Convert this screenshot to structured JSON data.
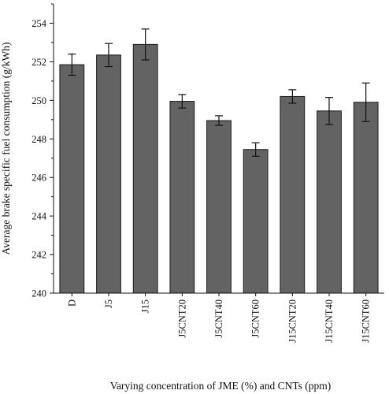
{
  "chart_data": {
    "type": "bar",
    "title": "",
    "xlabel": "Varying concentration of JME (%) and CNTs (ppm)",
    "ylabel": "Average brake specific fuel consumption (g/kWh)",
    "categories": [
      "D",
      "J5",
      "J15",
      "J5CNT20",
      "J5CNT40",
      "J5CNT60",
      "J15CNT20",
      "J15CNT40",
      "J15CNT60"
    ],
    "values": [
      251.85,
      252.35,
      252.9,
      249.95,
      248.95,
      247.45,
      250.2,
      249.45,
      249.9
    ],
    "errors": [
      0.55,
      0.6,
      0.8,
      0.35,
      0.25,
      0.35,
      0.35,
      0.7,
      1.0
    ],
    "ylim": [
      240,
      255
    ],
    "yticks": [
      240,
      242,
      244,
      246,
      248,
      250,
      252,
      254
    ],
    "grid": false,
    "legend": false,
    "colors": {
      "bar_fill": "#636363",
      "bar_stroke": "#1a1a1a",
      "axis": "#111111"
    }
  }
}
